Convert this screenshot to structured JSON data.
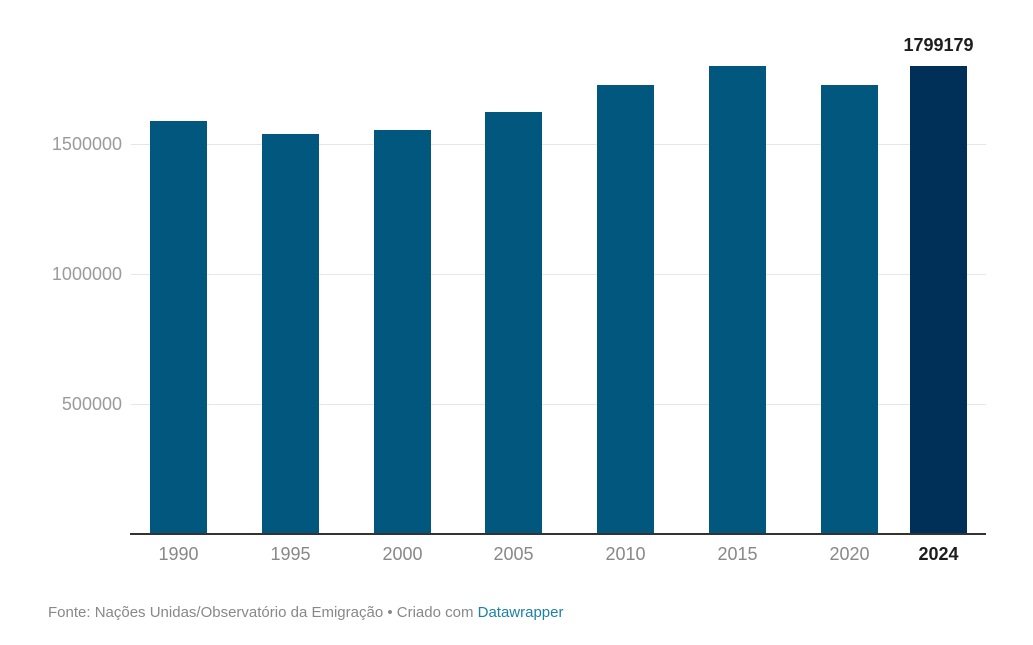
{
  "chart_data": {
    "type": "bar",
    "title": "",
    "xlabel": "",
    "ylabel": "",
    "categories": [
      "1990",
      "1995",
      "2000",
      "2005",
      "2010",
      "2015",
      "2020",
      "2024"
    ],
    "values": [
      1588000,
      1538000,
      1554000,
      1623000,
      1727000,
      1800000,
      1727000,
      1799179
    ],
    "highlight_index": 7,
    "highlight_label": "1799179",
    "yticks": [
      500000,
      1000000,
      1500000
    ],
    "ytick_labels": [
      "500000",
      "1000000",
      "1500000"
    ],
    "ylim": [
      0,
      1850000
    ],
    "grid": true,
    "legend": null,
    "colors": {
      "bar": "#02577f",
      "highlight": "#003057"
    }
  },
  "footer": {
    "source_text": "Fonte: Nações Unidas/Observatório da Emigração • Criado com ",
    "link_text": "Datawrapper"
  }
}
